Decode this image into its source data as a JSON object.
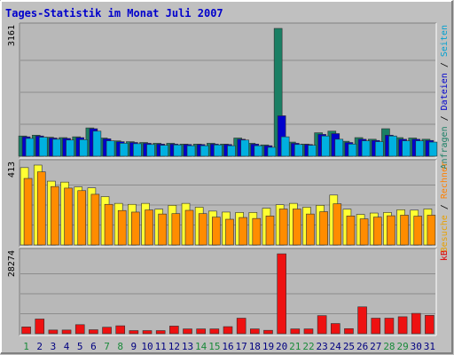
{
  "chart_data": {
    "type": "bar",
    "title": "Tages-Statistik im Monat Juli 2007",
    "categories": [
      "1",
      "2",
      "3",
      "4",
      "5",
      "6",
      "7",
      "8",
      "9",
      "10",
      "11",
      "12",
      "13",
      "14",
      "15",
      "16",
      "17",
      "18",
      "19",
      "20",
      "21",
      "22",
      "23",
      "24",
      "25",
      "26",
      "27",
      "28",
      "29",
      "30",
      "31"
    ],
    "weekend_days": [
      "1",
      "7",
      "8",
      "14",
      "15",
      "21",
      "22",
      "28",
      "29"
    ],
    "panels": [
      {
        "id": "top",
        "max_label": "3161",
        "ymax": 3161,
        "right_labels": [
          {
            "text": "Anfragen",
            "color": "#1a7f64"
          },
          {
            "text": " / ",
            "color": "#000000"
          },
          {
            "text": "Dateien",
            "color": "#0000cc"
          },
          {
            "text": " / ",
            "color": "#000000"
          },
          {
            "text": "Seiten",
            "color": "#00a0d0"
          }
        ],
        "series": [
          {
            "name": "Anfragen",
            "color": "#1a7f64",
            "values": [
              500,
              520,
              470,
              460,
              480,
              700,
              450,
              380,
              360,
              340,
              320,
              320,
              300,
              300,
              320,
              300,
              450,
              320,
              280,
              3161,
              350,
              300,
              580,
              620,
              370,
              460,
              420,
              680,
              460,
              450,
              420
            ]
          },
          {
            "name": "Dateien",
            "color": "#0000cc",
            "values": [
              480,
              500,
              450,
              440,
              460,
              680,
              430,
              360,
              340,
              320,
              300,
              300,
              290,
              290,
              300,
              290,
              420,
              300,
              260,
              1000,
              320,
              290,
              540,
              560,
              340,
              420,
              390,
              520,
              420,
              420,
              390
            ]
          },
          {
            "name": "Seiten",
            "color": "#00b0e0",
            "values": [
              440,
              470,
              420,
              400,
              410,
              620,
              380,
              320,
              310,
              290,
              270,
              280,
              260,
              260,
              280,
              260,
              400,
              260,
              220,
              480,
              290,
              270,
              500,
              420,
              300,
              380,
              360,
              500,
              380,
              380,
              350
            ]
          }
        ]
      },
      {
        "id": "middle",
        "max_label": "413",
        "ymax": 413,
        "right_labels": [
          {
            "text": "Besuche",
            "color": "#e8a000"
          },
          {
            "text": " / ",
            "color": "#000000"
          },
          {
            "text": "Rechner",
            "color": "#ff8000"
          }
        ],
        "series": [
          {
            "name": "Besuche",
            "color": "#ffff33",
            "values": [
              400,
              413,
              330,
              325,
              300,
              295,
              250,
              215,
              210,
              215,
              185,
              205,
              215,
              195,
              175,
              170,
              168,
              168,
              190,
              208,
              215,
              195,
              205,
              258,
              185,
              158,
              165,
              168,
              182,
              180,
              186
            ]
          },
          {
            "name": "Rechner",
            "color": "#ff8c00",
            "values": [
              344,
              378,
              302,
              294,
              281,
              262,
              210,
              178,
              170,
              181,
              160,
              162,
              179,
              162,
              144,
              133,
              142,
              137,
              150,
              186,
              186,
              160,
              172,
              213,
              150,
              135,
              144,
              151,
              154,
              149,
              154
            ]
          }
        ]
      },
      {
        "id": "bottom",
        "max_label": "28274",
        "ymax": 28274,
        "right_labels": [
          {
            "text": "kB",
            "color": "#e00000"
          }
        ],
        "series": [
          {
            "name": "kB",
            "color": "#ee1111",
            "values": [
              2400,
              5200,
              1300,
              1300,
              3200,
              1400,
              2300,
              2800,
              1100,
              1100,
              1100,
              2700,
              1700,
              1700,
              1700,
              2500,
              5500,
              1700,
              1200,
              28274,
              1700,
              1700,
              6400,
              3600,
              1800,
              9500,
              5500,
              5500,
              6000,
              7200,
              6500
            ]
          }
        ]
      }
    ]
  }
}
